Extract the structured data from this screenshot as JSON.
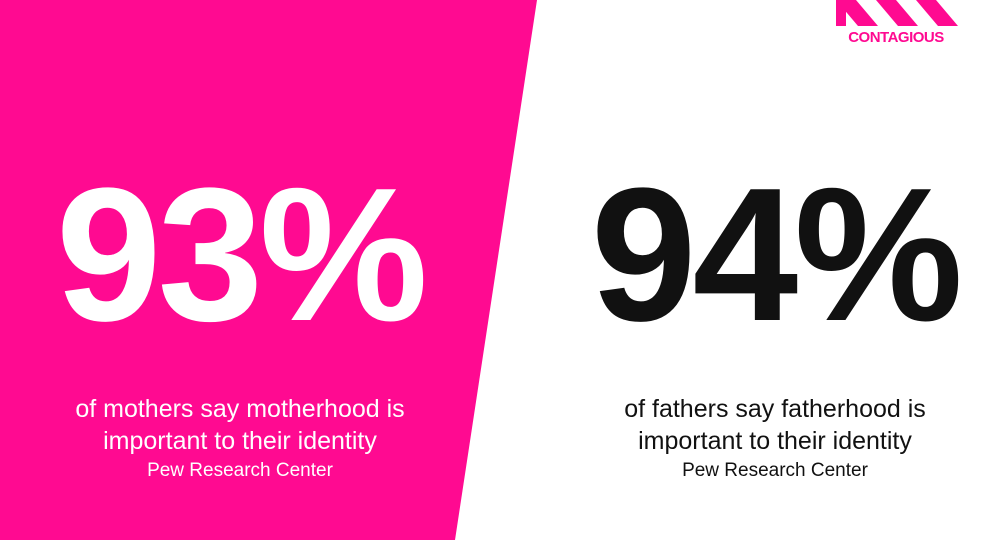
{
  "logo": "CONTAGIOUS",
  "left": {
    "stat": "93%",
    "caption_lines": [
      "of mothers say motherhood is",
      "important to their identity"
    ],
    "source": "Pew Research Center"
  },
  "right": {
    "stat": "94%",
    "caption_lines": [
      "of fathers say fatherhood is",
      "important to their identity"
    ],
    "source": "Pew Research Center"
  }
}
